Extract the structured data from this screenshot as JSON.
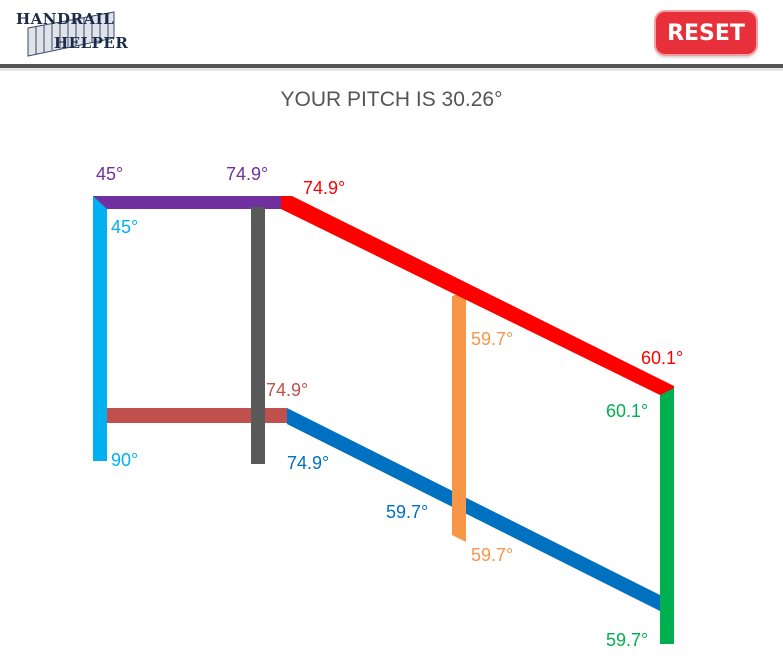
{
  "header": {
    "logo_line1": "HANDRAIL",
    "logo_line2": "HELPER",
    "reset_label": "RESET"
  },
  "pitch_text": "YOUR PITCH IS 30.26°",
  "colors": {
    "top_rail_purple": "#7030a0",
    "top_rail_red": "#ff0000",
    "left_post": "#00b0f0",
    "middle_post": "#595959",
    "bottom_rail_brown": "#c0504d",
    "bottom_rail_blue": "#0070c0",
    "orange_baluster": "#f79646",
    "green_post": "#00b050"
  },
  "angles": {
    "top_left_purple": "45°",
    "top_right_purple": "74.9°",
    "red_rail_top": "74.9°",
    "left_post_top": "45°",
    "orange_top": "59.7°",
    "red_rail_end": "60.1°",
    "green_top": "60.1°",
    "brown_rail_end": "74.9°",
    "left_post_bottom": "90°",
    "blue_rail_start": "74.9°",
    "blue_at_orange": "59.7°",
    "orange_bottom": "59.7°",
    "green_bottom": "59.7°"
  }
}
